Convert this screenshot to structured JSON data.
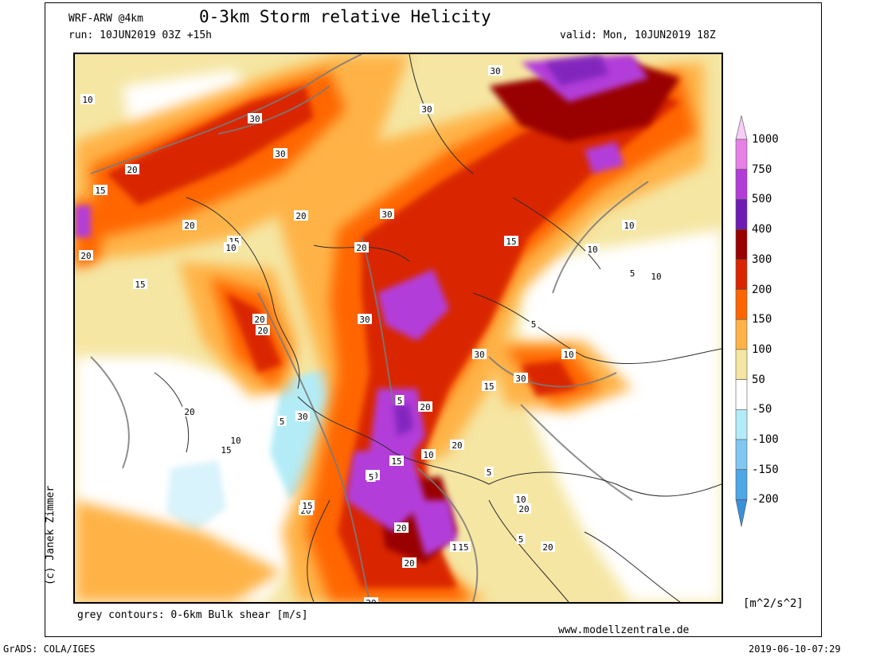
{
  "header": {
    "model": "WRF-ARW @4km",
    "title": "0-3km Storm relative Helicity",
    "run": "run: 10JUN2019 03Z +15h",
    "valid": "valid: Mon, 10JUN2019 18Z"
  },
  "footer": {
    "contours_note": "grey contours: 0-6km Bulk shear [m/s]",
    "website": "www.modellzentrale.de",
    "software": "GrADS: COLA/IGES",
    "timestamp": "2019-06-10-07:29"
  },
  "credit": "(c) Janek Zimmer",
  "units": "[m^2/s^2]",
  "colorbar": {
    "levels": [
      "1000",
      "750",
      "500",
      "400",
      "300",
      "200",
      "150",
      "100",
      "50",
      "-50",
      "-100",
      "-150",
      "-200"
    ],
    "colors": [
      "#f7ccf7",
      "#e680e6",
      "#b33cd9",
      "#6e1ab3",
      "#990000",
      "#d92600",
      "#ff6600",
      "#ffb347",
      "#f5e6a3",
      "#ffffff",
      "#b3ecf7",
      "#80c8f2",
      "#4da6e6",
      "#3a8fd9"
    ]
  },
  "contour_labels": [
    "10",
    "30",
    "30",
    "20",
    "15",
    "20",
    "15",
    "20",
    "15",
    "20",
    "30",
    "20",
    "10",
    "20",
    "15",
    "30",
    "30",
    "30",
    "20",
    "20",
    "15",
    "10",
    "10",
    "5",
    "10",
    "20",
    "15",
    "10",
    "5",
    "30",
    "30",
    "5",
    "10",
    "15",
    "20",
    "20",
    "5",
    "10",
    "15",
    "5",
    "20",
    "5",
    "20",
    "20",
    "30",
    "20",
    "15",
    "20",
    "20",
    "15",
    "10",
    "5"
  ]
}
